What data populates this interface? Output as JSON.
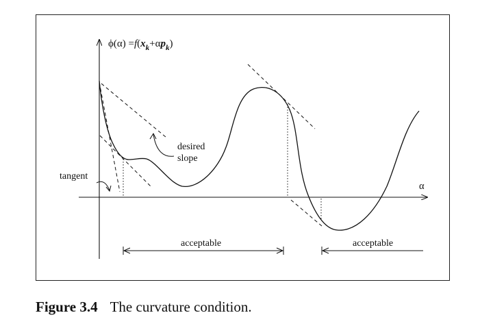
{
  "diagram": {
    "y_axis_label": {
      "phi": "ϕ(α) =",
      "f": "f",
      "open": "(",
      "x": "x",
      "k1": "k",
      "plus": "+α",
      "p": "p",
      "k2": "k",
      "close": ")"
    },
    "x_axis_label": "α",
    "labels": {
      "tangent": "tangent",
      "desired": "desired",
      "slope": "slope",
      "acceptable_1": "acceptable",
      "acceptable_2": "acceptable"
    }
  },
  "caption": {
    "number": "Figure 3.4",
    "text": "The curvature condition."
  }
}
